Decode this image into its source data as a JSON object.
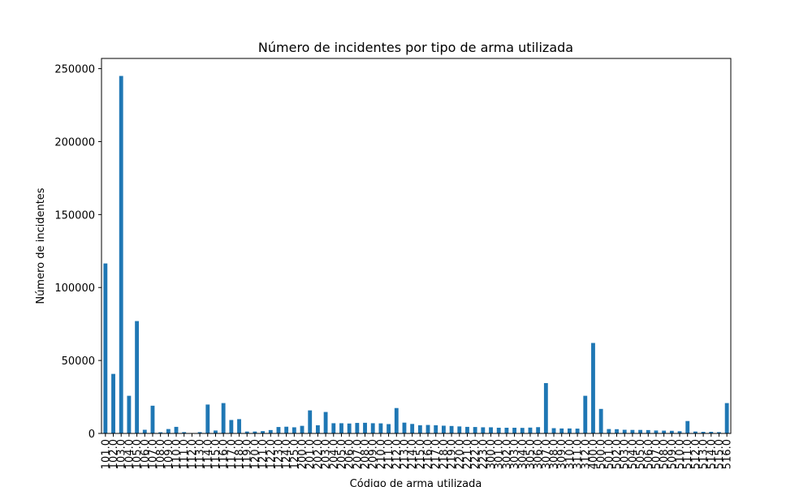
{
  "chart_data": {
    "type": "bar",
    "title": "Número de incidentes por tipo de arma utilizada",
    "xlabel": "Código de arma utilizada",
    "ylabel": "Número de incidentes",
    "ylim": [
      0,
      257000
    ],
    "yticks": [
      0,
      50000,
      100000,
      150000,
      200000,
      250000
    ],
    "grid": false,
    "legend": "none",
    "bar_color": "#1f77b4",
    "categories": [
      "101.0",
      "102.0",
      "103.0",
      "104.0",
      "105.0",
      "106.0",
      "107.0",
      "108.0",
      "109.0",
      "110.0",
      "111.0",
      "112.0",
      "113.0",
      "114.0",
      "115.0",
      "116.0",
      "117.0",
      "118.0",
      "119.0",
      "120.0",
      "121.0",
      "122.0",
      "123.0",
      "124.0",
      "125.0",
      "200.0",
      "201.0",
      "202.0",
      "203.0",
      "204.0",
      "205.0",
      "206.0",
      "207.0",
      "208.0",
      "209.0",
      "210.0",
      "211.0",
      "212.0",
      "213.0",
      "214.0",
      "215.0",
      "216.0",
      "217.0",
      "218.0",
      "219.0",
      "220.0",
      "221.0",
      "222.0",
      "223.0",
      "300.0",
      "301.0",
      "302.0",
      "303.0",
      "304.0",
      "305.0",
      "306.0",
      "307.0",
      "308.0",
      "309.0",
      "310.0",
      "311.0",
      "312.0",
      "400.0",
      "500.0",
      "501.0",
      "502.0",
      "503.0",
      "504.0",
      "505.0",
      "506.0",
      "507.0",
      "508.0",
      "509.0",
      "510.0",
      "511.0",
      "512.0",
      "513.0",
      "514.0",
      "515.0",
      "516.0"
    ],
    "values": [
      116500,
      40800,
      245000,
      25800,
      77000,
      2500,
      19000,
      800,
      3000,
      4500,
      900,
      300,
      900,
      19800,
      2000,
      20800,
      9200,
      9800,
      1300,
      1300,
      1600,
      2300,
      4400,
      4600,
      4200,
      5200,
      15800,
      5600,
      14700,
      7000,
      7000,
      6800,
      7200,
      7300,
      7000,
      6900,
      6400,
      17400,
      7400,
      6500,
      5600,
      5800,
      5600,
      5300,
      5100,
      4800,
      4500,
      4400,
      4200,
      4200,
      3900,
      3900,
      3900,
      3800,
      4000,
      4300,
      34500,
      3600,
      3400,
      3400,
      3300,
      25800,
      62000,
      16800,
      3000,
      2900,
      2500,
      2400,
      2400,
      2300,
      2000,
      1900,
      1800,
      1500,
      8500,
      1300,
      1100,
      1100,
      900,
      20800
    ]
  }
}
